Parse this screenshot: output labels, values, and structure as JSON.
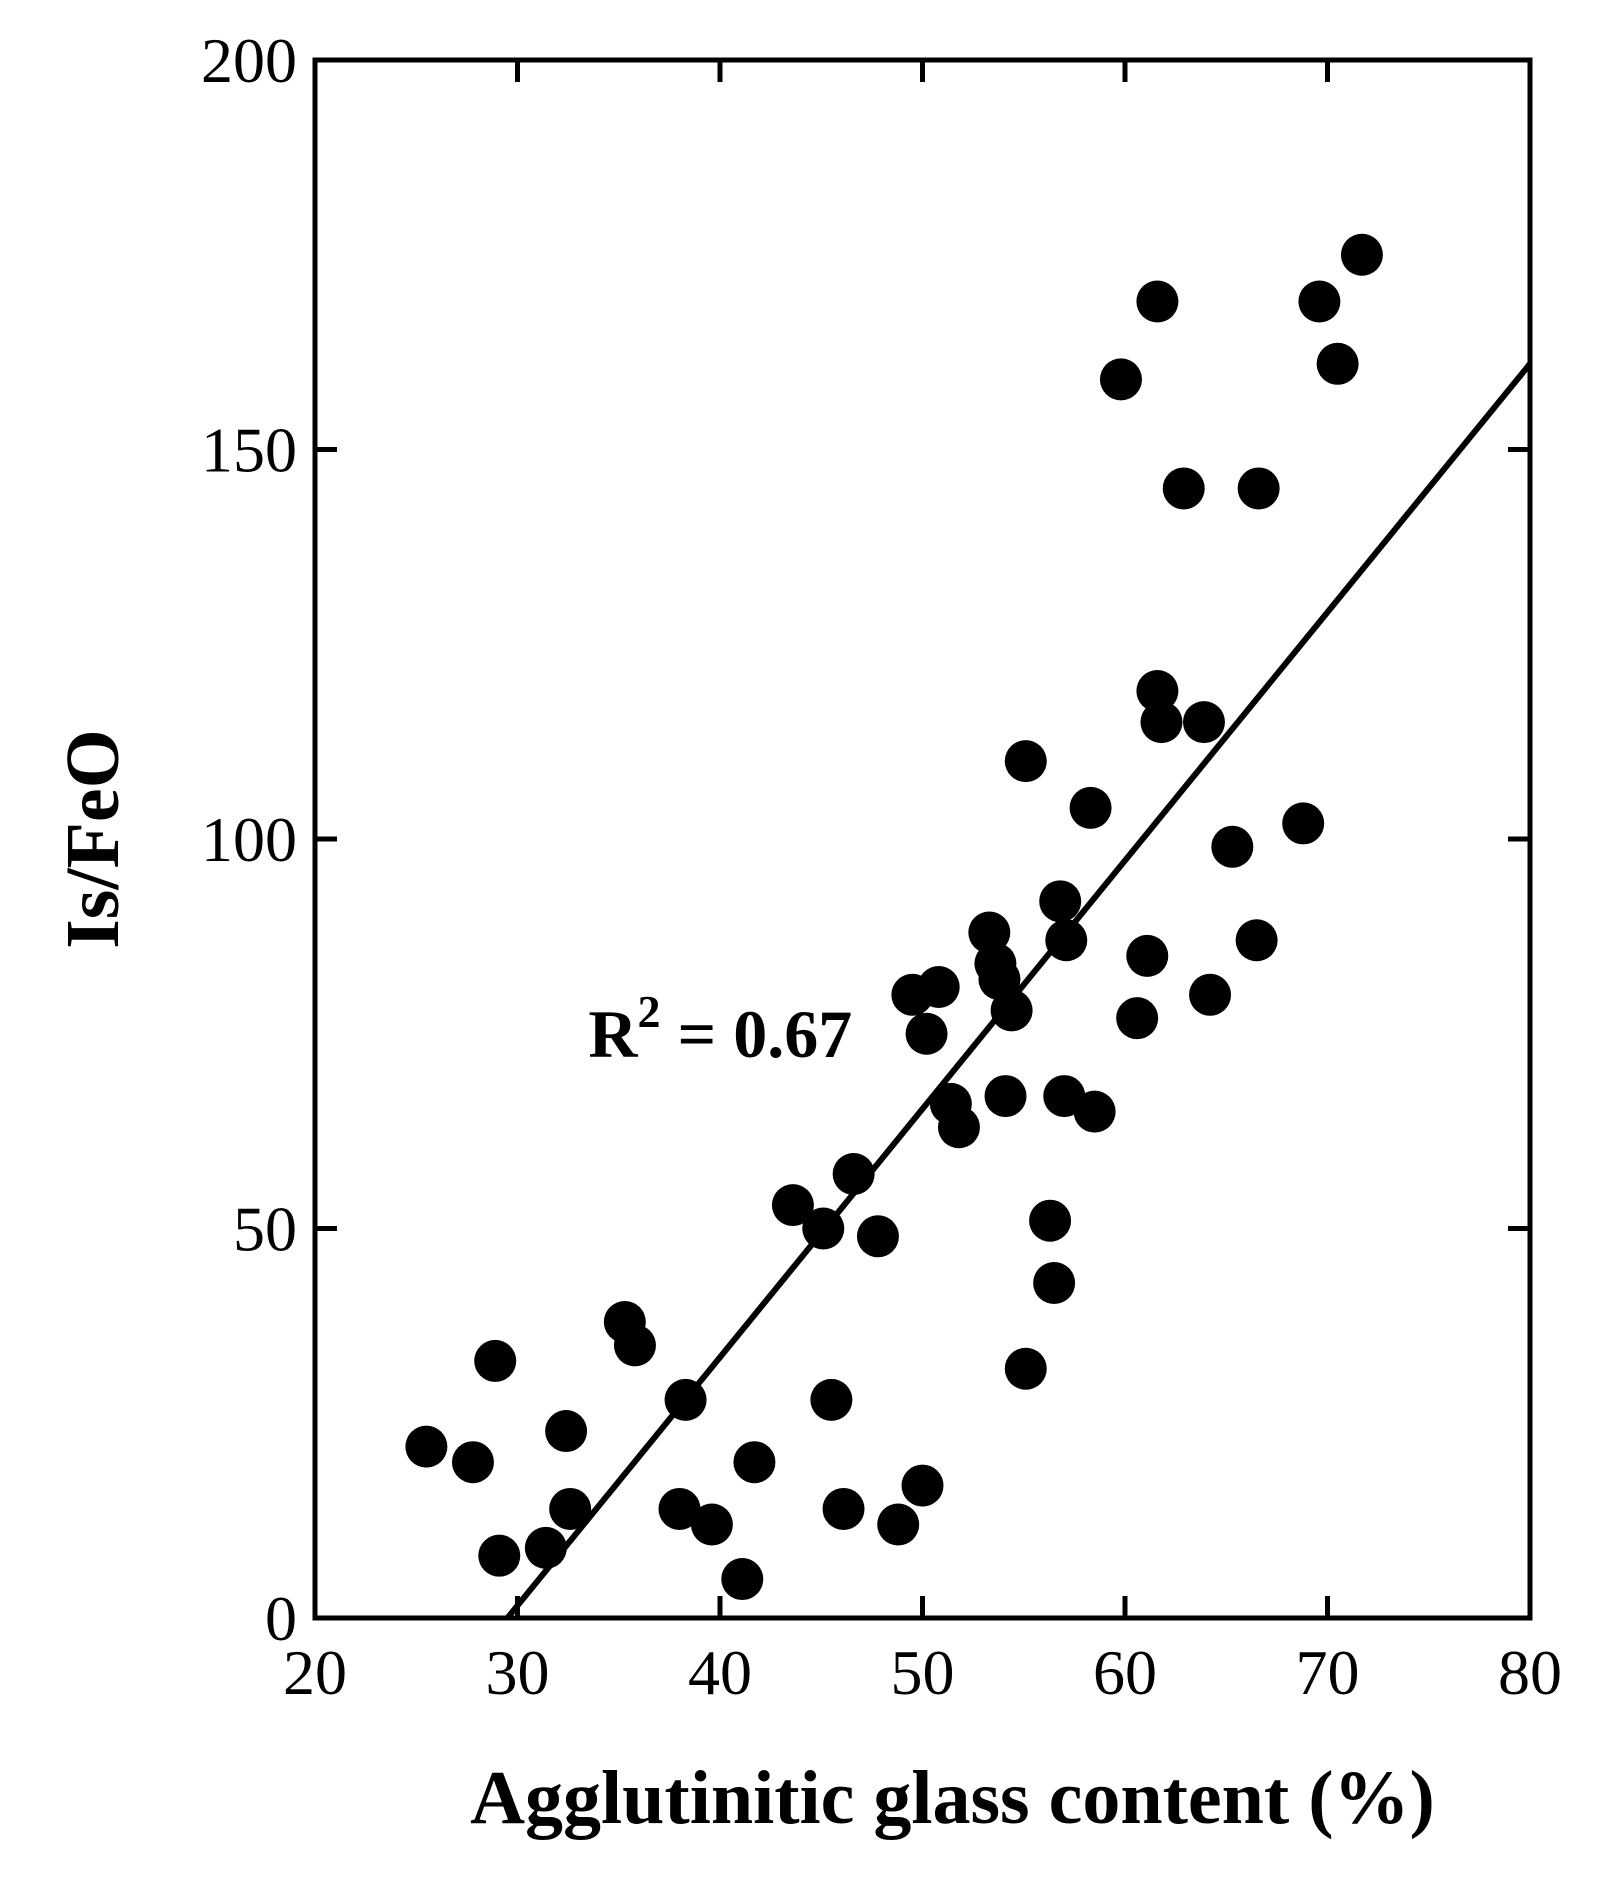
{
  "chart_data": {
    "type": "scatter",
    "xlabel": "Agglutinitic glass content (%)",
    "ylabel": "Is/FeO",
    "xlim": [
      20,
      80
    ],
    "ylim": [
      0,
      200
    ],
    "xticks": [
      20,
      30,
      40,
      50,
      60,
      70,
      80
    ],
    "yticks": [
      0,
      50,
      100,
      150,
      200
    ],
    "grid": false,
    "annotation": {
      "base": "R",
      "sup": "2",
      "rest": " = 0.67",
      "x": 33.5,
      "y": 72
    },
    "fit_line": {
      "x": [
        29.5,
        80
      ],
      "y": [
        0,
        161
      ]
    },
    "points": [
      {
        "x": 25.5,
        "y": 22
      },
      {
        "x": 27.8,
        "y": 20
      },
      {
        "x": 28.9,
        "y": 33
      },
      {
        "x": 29.1,
        "y": 8
      },
      {
        "x": 31.4,
        "y": 9
      },
      {
        "x": 32.4,
        "y": 24
      },
      {
        "x": 32.6,
        "y": 14
      },
      {
        "x": 35.3,
        "y": 38
      },
      {
        "x": 35.8,
        "y": 35
      },
      {
        "x": 38.0,
        "y": 14
      },
      {
        "x": 38.3,
        "y": 28
      },
      {
        "x": 39.6,
        "y": 12
      },
      {
        "x": 41.1,
        "y": 5
      },
      {
        "x": 41.7,
        "y": 20
      },
      {
        "x": 43.6,
        "y": 53
      },
      {
        "x": 45.1,
        "y": 50
      },
      {
        "x": 45.5,
        "y": 28
      },
      {
        "x": 46.1,
        "y": 14
      },
      {
        "x": 46.6,
        "y": 57
      },
      {
        "x": 47.8,
        "y": 49
      },
      {
        "x": 48.8,
        "y": 12
      },
      {
        "x": 49.5,
        "y": 80
      },
      {
        "x": 50.0,
        "y": 17
      },
      {
        "x": 50.2,
        "y": 75
      },
      {
        "x": 50.8,
        "y": 81
      },
      {
        "x": 51.4,
        "y": 66
      },
      {
        "x": 51.8,
        "y": 63
      },
      {
        "x": 53.3,
        "y": 88
      },
      {
        "x": 53.6,
        "y": 84
      },
      {
        "x": 53.8,
        "y": 82
      },
      {
        "x": 54.1,
        "y": 67
      },
      {
        "x": 54.4,
        "y": 78
      },
      {
        "x": 55.1,
        "y": 110
      },
      {
        "x": 55.1,
        "y": 32
      },
      {
        "x": 56.3,
        "y": 51
      },
      {
        "x": 56.5,
        "y": 43
      },
      {
        "x": 56.8,
        "y": 92
      },
      {
        "x": 57.0,
        "y": 67
      },
      {
        "x": 57.1,
        "y": 87
      },
      {
        "x": 58.3,
        "y": 104
      },
      {
        "x": 58.5,
        "y": 65
      },
      {
        "x": 59.8,
        "y": 159
      },
      {
        "x": 60.6,
        "y": 77
      },
      {
        "x": 61.1,
        "y": 85
      },
      {
        "x": 61.6,
        "y": 119
      },
      {
        "x": 61.6,
        "y": 169
      },
      {
        "x": 61.8,
        "y": 115
      },
      {
        "x": 62.9,
        "y": 145
      },
      {
        "x": 63.9,
        "y": 115
      },
      {
        "x": 64.2,
        "y": 80
      },
      {
        "x": 65.3,
        "y": 99
      },
      {
        "x": 66.5,
        "y": 87
      },
      {
        "x": 66.6,
        "y": 145
      },
      {
        "x": 68.8,
        "y": 102
      },
      {
        "x": 69.6,
        "y": 169
      },
      {
        "x": 70.5,
        "y": 161
      },
      {
        "x": 71.7,
        "y": 175
      }
    ]
  }
}
